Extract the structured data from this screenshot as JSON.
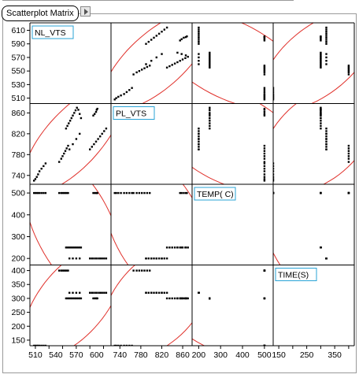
{
  "header": {
    "tab_label": "Scatterplot Matrix"
  },
  "colors": {
    "point": "#000000",
    "ellipse": "#e0302a",
    "label_border": "#29a3d6",
    "frame": "#000000"
  },
  "chart_data": {
    "type": "scatter-matrix",
    "variables": [
      "NL_VTS",
      "PL_VTS",
      "TEMP( C)",
      "TIME(S)"
    ],
    "ranges": [
      [
        502,
        621
      ],
      [
        723,
        878
      ],
      [
        170,
        540
      ],
      [
        130,
        420
      ]
    ],
    "ticks": [
      [
        510,
        530,
        550,
        570,
        590,
        610
      ],
      [
        740,
        780,
        820,
        860
      ],
      [
        200,
        300,
        400,
        500
      ],
      [
        150,
        200,
        250,
        300,
        350,
        400
      ]
    ],
    "x_tick_labels": [
      [
        "510",
        "540",
        "570",
        "600"
      ],
      [
        "740",
        "780",
        "820",
        "860"
      ],
      [
        "200",
        "300",
        "400",
        "500"
      ],
      [
        "150",
        "250",
        "350"
      ]
    ],
    "x_tick_values": [
      [
        510,
        540,
        570,
        600
      ],
      [
        740,
        780,
        820,
        860
      ],
      [
        200,
        300,
        400,
        500
      ],
      [
        150,
        250,
        350
      ]
    ],
    "density_ellipse": "red, each off-diagonal cell",
    "grid": false,
    "observations": [
      [
        508,
        730,
        500,
        130
      ],
      [
        510,
        733,
        500,
        130
      ],
      [
        512,
        737,
        500,
        130
      ],
      [
        514,
        742,
        500,
        130
      ],
      [
        516,
        748,
        500,
        130
      ],
      [
        519,
        753,
        500,
        130
      ],
      [
        522,
        758,
        500,
        130
      ],
      [
        525,
        763,
        500,
        130
      ],
      [
        545,
        766,
        500,
        400
      ],
      [
        548,
        772,
        500,
        400
      ],
      [
        550,
        777,
        500,
        400
      ],
      [
        552,
        782,
        500,
        400
      ],
      [
        554,
        787,
        500,
        400
      ],
      [
        556,
        792,
        500,
        400
      ],
      [
        558,
        797,
        500,
        400
      ],
      [
        555,
        830,
        250,
        300
      ],
      [
        557,
        835,
        250,
        300
      ],
      [
        559,
        840,
        250,
        300
      ],
      [
        561,
        845,
        250,
        300
      ],
      [
        563,
        850,
        250,
        300
      ],
      [
        565,
        855,
        250,
        300
      ],
      [
        567,
        860,
        250,
        300
      ],
      [
        569,
        865,
        250,
        300
      ],
      [
        571,
        870,
        250,
        300
      ],
      [
        573,
        866,
        250,
        300
      ],
      [
        575,
        858,
        250,
        300
      ],
      [
        577,
        850,
        250,
        300
      ],
      [
        590,
        790,
        200,
        320
      ],
      [
        593,
        795,
        200,
        320
      ],
      [
        596,
        800,
        200,
        320
      ],
      [
        599,
        805,
        200,
        320
      ],
      [
        602,
        810,
        200,
        320
      ],
      [
        605,
        815,
        200,
        320
      ],
      [
        608,
        820,
        200,
        320
      ],
      [
        611,
        825,
        200,
        320
      ],
      [
        614,
        830,
        200,
        320
      ],
      [
        595,
        855,
        500,
        300
      ],
      [
        597,
        858,
        500,
        300
      ],
      [
        599,
        862,
        500,
        300
      ],
      [
        600,
        866,
        500,
        300
      ],
      [
        601,
        868,
        500,
        300
      ],
      [
        560,
        790,
        200,
        320
      ],
      [
        565,
        800,
        200,
        320
      ],
      [
        570,
        810,
        200,
        320
      ],
      [
        575,
        820,
        200,
        320
      ]
    ]
  }
}
